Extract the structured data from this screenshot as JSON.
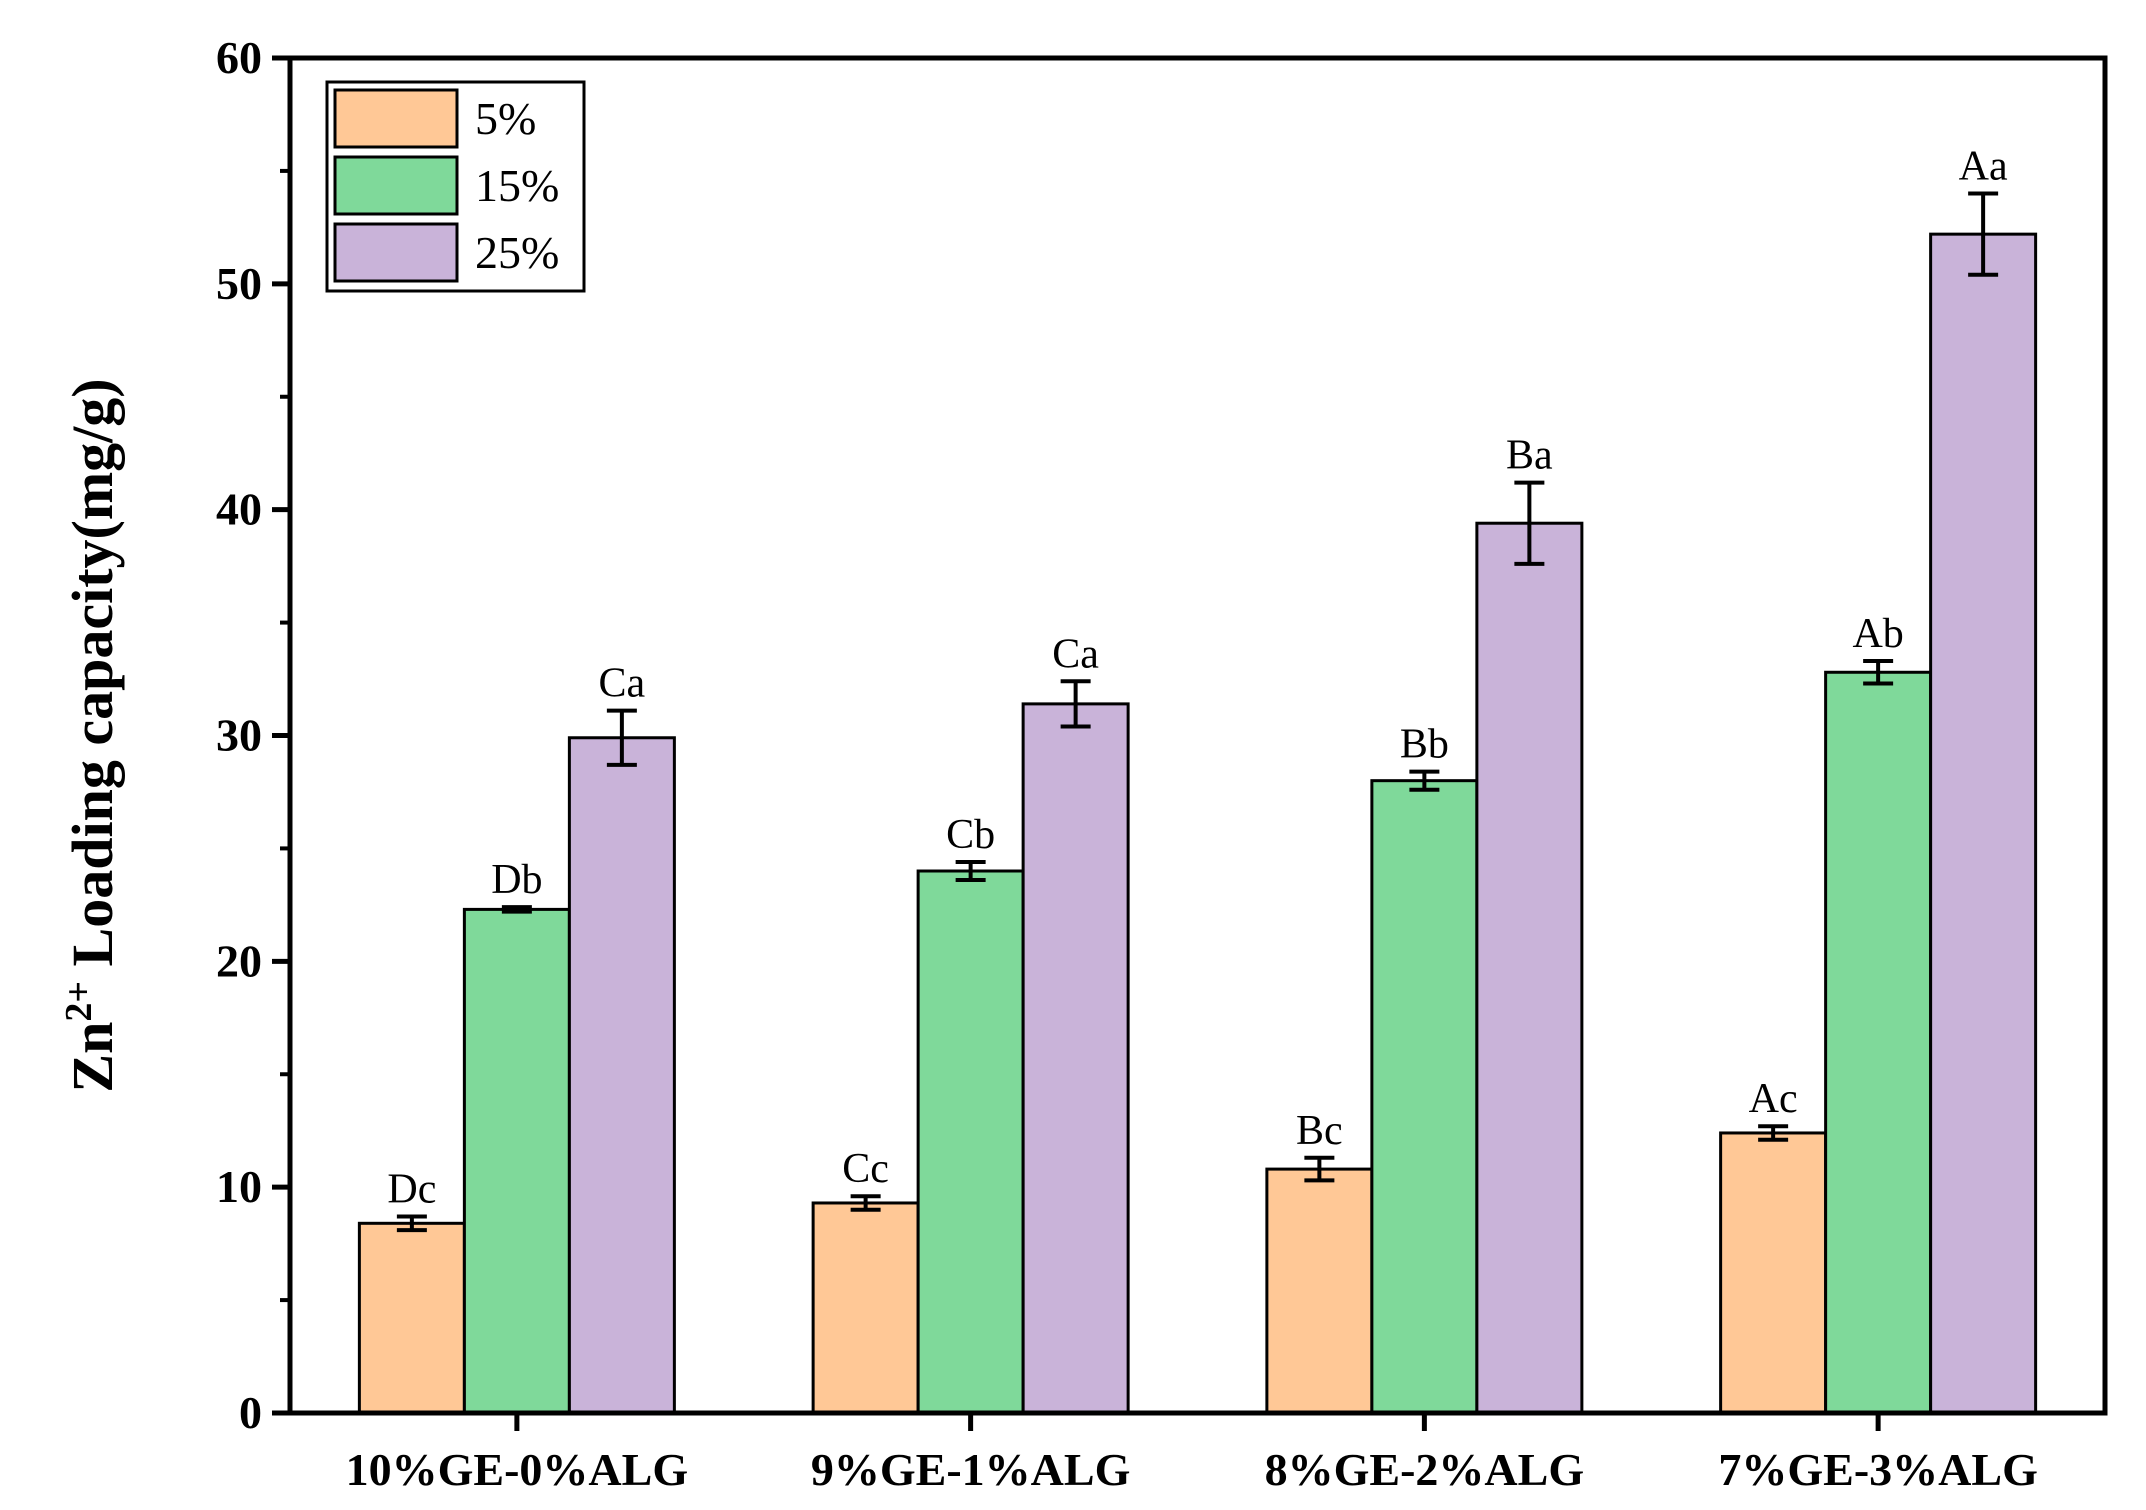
{
  "chart_data": {
    "type": "bar",
    "title": "",
    "xlabel": "",
    "ylabel": {
      "prefix": "Zn",
      "superscript": "2+",
      "suffix": " Loading capacity(mg/g)"
    },
    "ylim": [
      0,
      60
    ],
    "yticks": [
      "0",
      "10",
      "20",
      "30",
      "40",
      "50",
      "60"
    ],
    "categories": [
      "10%GE-0%ALG",
      "9%GE-1%ALG",
      "8%GE-2%ALG",
      "7%GE-3%ALG"
    ],
    "legend_position": "top-left",
    "series": [
      {
        "name": "5%",
        "color": "#FFC896",
        "values": [
          8.4,
          9.3,
          10.8,
          12.4
        ],
        "errors": [
          0.3,
          0.3,
          0.5,
          0.3
        ],
        "labels": [
          "Dc",
          "Cc",
          "Bc",
          "Ac"
        ]
      },
      {
        "name": "15%",
        "color": "#7FD99A",
        "values": [
          22.3,
          24.0,
          28.0,
          32.8
        ],
        "errors": [
          0.1,
          0.4,
          0.4,
          0.5
        ],
        "labels": [
          "Db",
          "Cb",
          "Bb",
          "Ab"
        ]
      },
      {
        "name": "25%",
        "color": "#C9B3D9",
        "values": [
          29.9,
          31.4,
          39.4,
          52.2
        ],
        "errors": [
          1.2,
          1.0,
          1.8,
          1.8
        ],
        "labels": [
          "Ca",
          "Ca",
          "Ba",
          "Aa"
        ]
      }
    ]
  }
}
